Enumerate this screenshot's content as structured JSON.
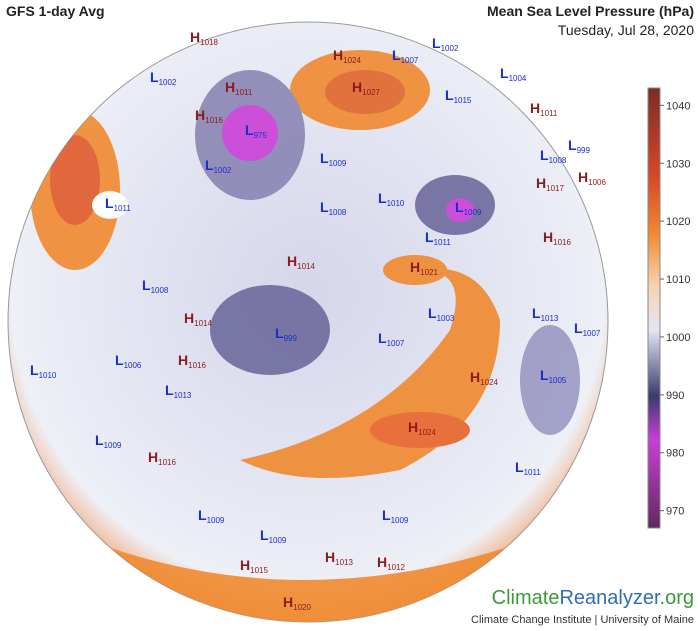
{
  "header": {
    "title": "GFS 1-day Avg",
    "variable": "Mean Sea Level Pressure (hPa)",
    "date": "Tuesday, Jul 28, 2020"
  },
  "colorbar": {
    "range": [
      967,
      1043
    ],
    "ticks": [
      1040,
      1030,
      1020,
      1010,
      1000,
      990,
      980,
      970
    ]
  },
  "centers": [
    {
      "type": "H",
      "value": 1018
    },
    {
      "type": "L",
      "value": 1002
    },
    {
      "type": "H",
      "value": 1011
    },
    {
      "type": "L",
      "value": 975
    },
    {
      "type": "H",
      "value": 1016
    },
    {
      "type": "H",
      "value": 1024
    },
    {
      "type": "L",
      "value": 1007
    },
    {
      "type": "L",
      "value": 1002
    },
    {
      "type": "L",
      "value": 1004
    },
    {
      "type": "H",
      "value": 1027
    },
    {
      "type": "L",
      "value": 1015
    },
    {
      "type": "H",
      "value": 1011
    },
    {
      "type": "L",
      "value": 1008
    },
    {
      "type": "L",
      "value": 999
    },
    {
      "type": "H",
      "value": 1017
    },
    {
      "type": "H",
      "value": 1006
    },
    {
      "type": "L",
      "value": 1002
    },
    {
      "type": "L",
      "value": 1009
    },
    {
      "type": "L",
      "value": 1010
    },
    {
      "type": "L",
      "value": 1008
    },
    {
      "type": "L",
      "value": 1011
    },
    {
      "type": "L",
      "value": 1009
    },
    {
      "type": "H",
      "value": 1016
    },
    {
      "type": "L",
      "value": 1011
    },
    {
      "type": "H",
      "value": 1021
    },
    {
      "type": "H",
      "value": 1014
    },
    {
      "type": "L",
      "value": 1003
    },
    {
      "type": "L",
      "value": 1008
    },
    {
      "type": "H",
      "value": 1014
    },
    {
      "type": "L",
      "value": 999
    },
    {
      "type": "L",
      "value": 1007
    },
    {
      "type": "L",
      "value": 1013
    },
    {
      "type": "L",
      "value": 1007
    },
    {
      "type": "L",
      "value": 1006
    },
    {
      "type": "H",
      "value": 1016
    },
    {
      "type": "L",
      "value": 1013
    },
    {
      "type": "L",
      "value": 1005
    },
    {
      "type": "H",
      "value": 1024
    },
    {
      "type": "H",
      "value": 1024
    },
    {
      "type": "L",
      "value": 1010
    },
    {
      "type": "L",
      "value": 1009
    },
    {
      "type": "H",
      "value": 1016
    },
    {
      "type": "L",
      "value": 1011
    },
    {
      "type": "L",
      "value": 1009
    },
    {
      "type": "L",
      "value": 1009
    },
    {
      "type": "L",
      "value": 1009
    },
    {
      "type": "H",
      "value": 1013
    },
    {
      "type": "H",
      "value": 1012
    },
    {
      "type": "H",
      "value": 1015
    },
    {
      "type": "H",
      "value": 1020
    }
  ],
  "logo": {
    "parts": [
      "Climate",
      "Reanalyzer",
      ".org"
    ],
    "credit": "Climate Change Institute | University of Maine"
  }
}
